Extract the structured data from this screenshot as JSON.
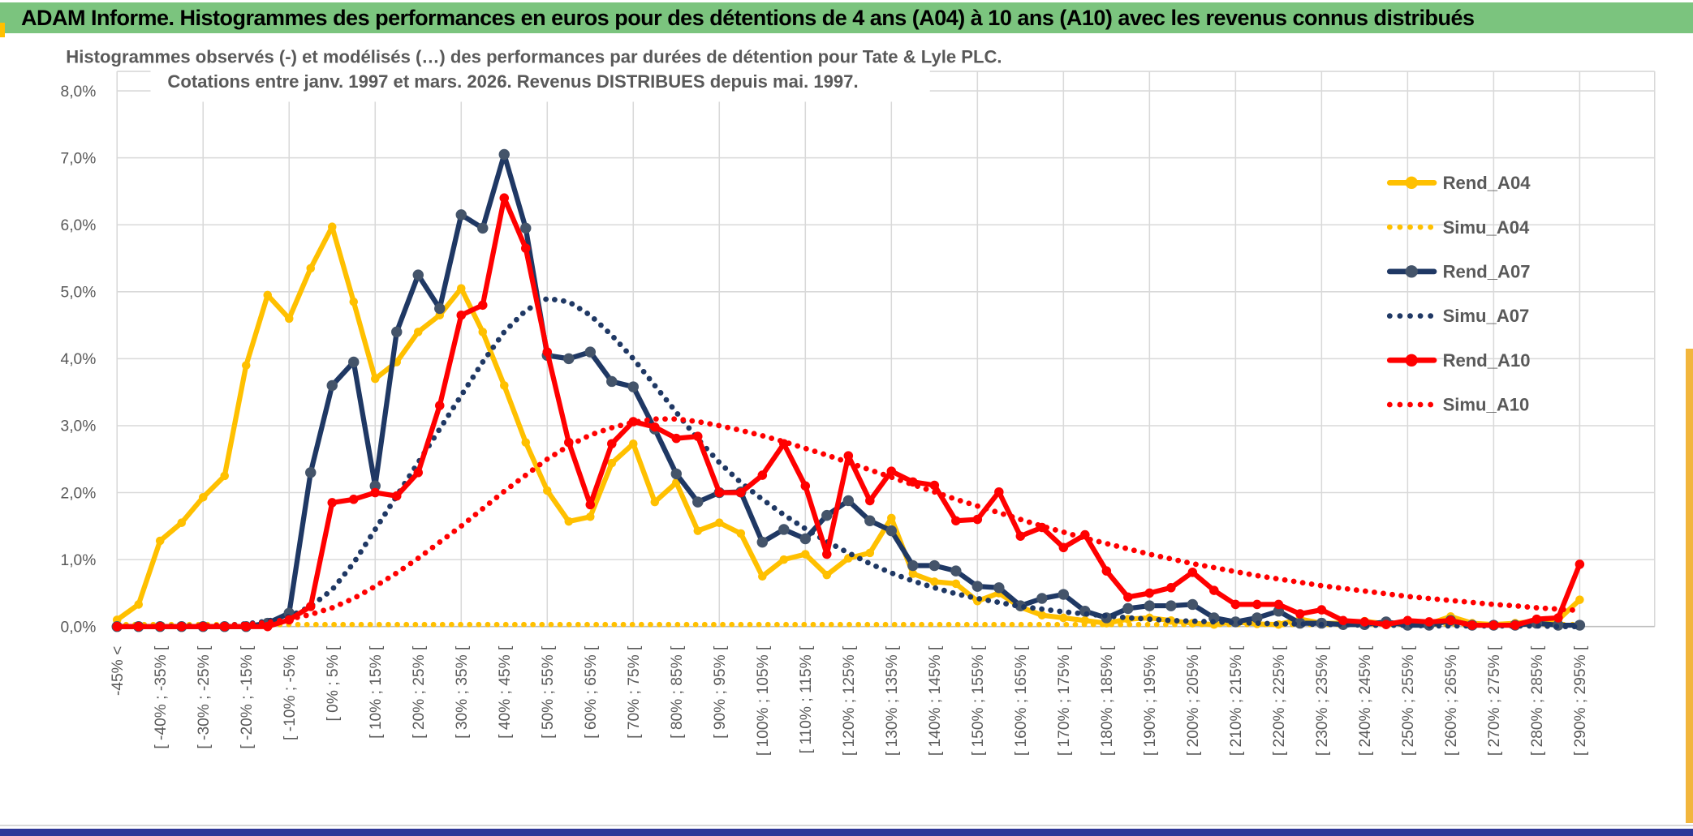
{
  "window": {
    "banner_title": "ADAM Informe. Histogrammes des performances en euros pour des détentions de 4 ans (A04) à 10 ans (A10) avec les revenus connus distribués"
  },
  "chart_data": {
    "type": "line",
    "title_line1": "Histogrammes observés (-) et modélisés (…) des performances par durées de détention pour Tate & Lyle PLC.",
    "title_line2": "Cotations entre janv. 1997 et mars. 2026. Revenus DISTRIBUES depuis mai. 1997.",
    "ylim": [
      0,
      8
    ],
    "y_ticks": [
      "0,0%",
      "1,0%",
      "2,0%",
      "3,0%",
      "4,0%",
      "5,0%",
      "6,0%",
      "7,0%",
      "8,0%"
    ],
    "grid": "on",
    "legend_position": "right-inside",
    "n_bins": 69,
    "label_every_bins": 2,
    "x_labels": [
      "-45% <",
      "[ -40% ; -35% [",
      "[ -30% ; -25% [",
      "[ -20% ; -15% [",
      "[ -10% ; -5% [",
      "[ 0% ; 5% [",
      "[ 10% ; 15% [",
      "[ 20% ; 25% [",
      "[ 30% ; 35% [",
      "[ 40% ; 45% [",
      "[ 50% ; 55% [",
      "[ 60% ; 65% [",
      "[ 70% ; 75% [",
      "[ 80% ; 85% [",
      "[ 90% ; 95% [",
      "[ 100% ; 105% [",
      "[ 110% ; 115% [",
      "[ 120% ; 125% [",
      "[ 130% ; 135% [",
      "[ 140% ; 145% [",
      "[ 150% ; 155% [",
      "[ 160% ; 165% [",
      "[ 170% ; 175% [",
      "[ 180% ; 185% [",
      "[ 190% ; 195% [",
      "[ 200% ; 205% [",
      "[ 210% ; 215% [",
      "[ 220% ; 225% [",
      "[ 230% ; 235% [",
      "[ 240% ; 245% [",
      "[ 250% ; 255% [",
      "[ 260% ; 265% [",
      "[ 270% ; 275% [",
      "[ 280% ; 285% [",
      "[ 290% ; 295% ["
    ],
    "series": [
      {
        "name": "Rend_A04",
        "style": "solid",
        "color": "#FFC000",
        "marker_color": "#FFC000",
        "marker_r": 5.5,
        "values": [
          0.1,
          0.33,
          1.28,
          1.55,
          1.93,
          2.25,
          3.9,
          4.95,
          4.6,
          5.35,
          5.97,
          4.85,
          3.7,
          3.95,
          4.4,
          4.65,
          5.05,
          4.4,
          3.6,
          2.75,
          2.03,
          1.57,
          1.64,
          2.44,
          2.73,
          1.86,
          2.15,
          1.43,
          1.55,
          1.39,
          0.75,
          1.0,
          1.08,
          0.77,
          1.02,
          1.1,
          1.62,
          0.79,
          0.67,
          0.64,
          0.38,
          0.5,
          0.29,
          0.17,
          0.13,
          0.09,
          0.05,
          0.11,
          0.13,
          0.09,
          0.05,
          0.03,
          0.07,
          0.04,
          0.03,
          0.11,
          0.05,
          0.05,
          0.08,
          0.04,
          0.06,
          0.04,
          0.15,
          0.05,
          0.03,
          0.05,
          0.08,
          0.1,
          0.4
        ]
      },
      {
        "name": "Simu_A04",
        "style": "dotted",
        "color": "#FFC000",
        "marker_r": 0,
        "values": [
          0.03,
          0.03,
          0.03,
          0.03,
          0.03,
          0.03,
          0.03,
          0.03,
          0.03,
          0.03,
          0.03,
          0.03,
          0.03,
          0.03,
          0.03,
          0.03,
          0.03,
          0.03,
          0.03,
          0.03,
          0.03,
          0.03,
          0.03,
          0.03,
          0.03,
          0.03,
          0.03,
          0.03,
          0.03,
          0.03,
          0.03,
          0.03,
          0.03,
          0.03,
          0.03,
          0.03,
          0.03,
          0.03,
          0.03,
          0.03,
          0.03,
          0.03,
          0.03,
          0.03,
          0.03,
          0.03,
          0.03,
          0.03,
          0.03,
          0.03,
          0.03,
          0.03,
          0.03,
          0.03,
          0.03,
          0.03,
          0.03,
          0.03,
          0.03,
          0.03,
          0.03,
          0.03,
          0.03,
          0.03,
          0.03,
          0.03,
          0.03,
          0.03,
          0.03
        ]
      },
      {
        "name": "Rend_A07",
        "style": "solid",
        "color": "#1F3864",
        "marker_color": "#44546A",
        "marker_r": 7,
        "values": [
          0,
          0,
          0,
          0,
          0,
          0,
          0,
          0.05,
          0.2,
          2.3,
          3.6,
          3.95,
          2.1,
          4.4,
          5.25,
          4.75,
          6.15,
          5.95,
          7.05,
          5.95,
          4.05,
          4.0,
          4.1,
          3.66,
          3.58,
          2.95,
          2.28,
          1.86,
          2.0,
          2.01,
          1.26,
          1.45,
          1.31,
          1.66,
          1.88,
          1.58,
          1.43,
          0.91,
          0.91,
          0.83,
          0.6,
          0.58,
          0.31,
          0.42,
          0.48,
          0.23,
          0.13,
          0.27,
          0.31,
          0.31,
          0.33,
          0.13,
          0.07,
          0.13,
          0.23,
          0.05,
          0.05,
          0.03,
          0.03,
          0.07,
          0.02,
          0.02,
          0.09,
          0.02,
          0.02,
          0.02,
          0.05,
          0.02,
          0.02
        ]
      },
      {
        "name": "Simu_A07",
        "style": "dotted",
        "color": "#1F3864",
        "marker_r": 0,
        "values": [
          0,
          0,
          0,
          0.01,
          0.01,
          0.02,
          0.04,
          0.08,
          0.15,
          0.3,
          0.55,
          0.95,
          1.45,
          1.95,
          2.45,
          2.95,
          3.45,
          3.95,
          4.4,
          4.72,
          4.9,
          4.85,
          4.65,
          4.35,
          4.0,
          3.6,
          3.2,
          2.8,
          2.45,
          2.15,
          1.9,
          1.67,
          1.46,
          1.27,
          1.1,
          0.94,
          0.8,
          0.68,
          0.58,
          0.49,
          0.42,
          0.36,
          0.3,
          0.26,
          0.22,
          0.19,
          0.16,
          0.13,
          0.11,
          0.09,
          0.08,
          0.07,
          0.06,
          0.05,
          0.04,
          0.04,
          0.03,
          0.03,
          0.02,
          0.02,
          0.02,
          0.01,
          0.01,
          0.01,
          0.01,
          0.01,
          0.01,
          0.0,
          0.0
        ]
      },
      {
        "name": "Rend_A10",
        "style": "solid",
        "color": "#FF0000",
        "marker_color": "#FF0000",
        "marker_r": 6,
        "values": [
          0,
          0,
          0,
          0,
          0,
          0,
          0,
          0,
          0.1,
          0.3,
          1.85,
          1.9,
          2.0,
          1.95,
          2.3,
          3.3,
          4.65,
          4.8,
          6.4,
          5.65,
          4.1,
          2.75,
          1.82,
          2.73,
          3.06,
          2.98,
          2.81,
          2.84,
          2.0,
          2.0,
          2.26,
          2.73,
          2.1,
          1.08,
          2.55,
          1.88,
          2.32,
          2.16,
          2.11,
          1.58,
          1.6,
          2.01,
          1.35,
          1.48,
          1.18,
          1.37,
          0.83,
          0.44,
          0.5,
          0.58,
          0.81,
          0.54,
          0.33,
          0.33,
          0.33,
          0.19,
          0.25,
          0.09,
          0.07,
          0.03,
          0.09,
          0.07,
          0.09,
          0.02,
          0.02,
          0.02,
          0.11,
          0.13,
          0.93
        ]
      },
      {
        "name": "Simu_A10",
        "style": "dotted",
        "color": "#FF0000",
        "marker_r": 0,
        "values": [
          0,
          0,
          0,
          0,
          0.01,
          0.02,
          0.03,
          0.06,
          0.11,
          0.18,
          0.28,
          0.42,
          0.6,
          0.8,
          1.02,
          1.26,
          1.5,
          1.76,
          2.02,
          2.26,
          2.5,
          2.7,
          2.86,
          2.97,
          3.05,
          3.1,
          3.1,
          3.06,
          3.0,
          2.93,
          2.85,
          2.76,
          2.66,
          2.56,
          2.45,
          2.34,
          2.23,
          2.12,
          2.01,
          1.9,
          1.8,
          1.7,
          1.6,
          1.5,
          1.41,
          1.32,
          1.24,
          1.16,
          1.08,
          1.01,
          0.94,
          0.88,
          0.82,
          0.76,
          0.71,
          0.66,
          0.61,
          0.57,
          0.53,
          0.49,
          0.45,
          0.42,
          0.39,
          0.36,
          0.33,
          0.31,
          0.28,
          0.26,
          0.24
        ]
      }
    ]
  },
  "colors": {
    "banner_bg": "#7BC47E",
    "gridline": "#D9D9D9",
    "axis_line": "#BFBFBF",
    "text_gray": "#595959",
    "gold": "#FFC000",
    "navy": "#1F3864",
    "navy_marker": "#44546A",
    "red": "#FF0000",
    "right_strip": "#F2B63C",
    "bottom_strip": "#2E3798"
  }
}
